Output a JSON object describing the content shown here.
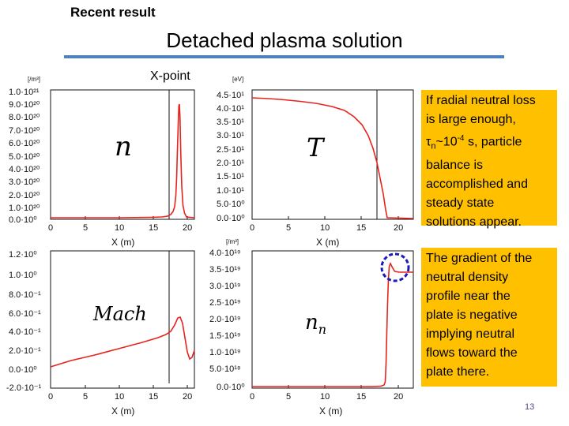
{
  "header": {
    "label": "Recent result"
  },
  "slide": {
    "title": "Detached plasma solution",
    "page_number": "13"
  },
  "annotations": {
    "xpoint": "X-point"
  },
  "plots": {
    "n": {
      "unit": "[/m³]",
      "label": "n",
      "yticks": [
        "1.0·10²¹",
        "9.0·10²⁰",
        "8.0·10²⁰",
        "7.0·10²⁰",
        "6.0·10²⁰",
        "5.0·10²⁰",
        "4.0·10²⁰",
        "3.0·10²⁰",
        "2.0·10²⁰",
        "1.0·10²⁰",
        "0.0·10⁰"
      ],
      "xticks": [
        "0",
        "5",
        "10",
        "15",
        "20"
      ],
      "xlabel": "X (m)"
    },
    "T": {
      "unit": "[eV]",
      "label": "T",
      "yticks": [
        "4.5·10¹",
        "4.0·10¹",
        "3.5·10¹",
        "3.0·10¹",
        "2.5·10¹",
        "2.0·10¹",
        "1.5·10¹",
        "1.0·10¹",
        "5.0·10⁰",
        "0.0·10⁰"
      ],
      "xticks": [
        "0",
        "5",
        "10",
        "15",
        "20"
      ],
      "xlabel": "X (m)"
    },
    "mach": {
      "label": "Mach",
      "yticks": [
        "1.2·10⁰",
        "1.0·10⁰",
        "8.0·10⁻¹",
        "6.0·10⁻¹",
        "4.0·10⁻¹",
        "2.0·10⁻¹",
        "0.0·10⁰",
        "-2.0·10⁻¹"
      ],
      "xticks": [
        "0",
        "5",
        "10",
        "15",
        "20"
      ],
      "xlabel": "X (m)"
    },
    "nn": {
      "unit": "[/m³]",
      "label": "n",
      "label_sub": "n",
      "yticks": [
        "4.0·10¹⁹",
        "3.5·10¹⁹",
        "3.0·10¹⁹",
        "2.5·10¹⁹",
        "2.0·10¹⁹",
        "1.5·10¹⁹",
        "1.0·10¹⁹",
        "5.0·10¹⁸",
        "0.0·10⁰"
      ],
      "xticks": [
        "0",
        "5",
        "10",
        "15",
        "20"
      ],
      "xlabel": "X (m)"
    }
  },
  "box1": {
    "line1": "If radial neutral loss",
    "line2": "is large enough,",
    "tau": "τ",
    "tau_sub": "n",
    "approx": "~10",
    "exp": "-4",
    "line3_end": " s, particle",
    "line4": "balance is",
    "line5": "accomplished and",
    "line6": "steady state",
    "line7": "solutions appear."
  },
  "box2": {
    "lines": [
      "The gradient of the",
      "neutral density",
      "profile near the",
      "plate is negative",
      "implying neutral",
      "flows toward the",
      "plate there."
    ]
  },
  "colors": {
    "curve": "#e8231c",
    "box": "#ffc000",
    "rule": "#4f81bd",
    "circle": "#1a1ab8"
  }
}
